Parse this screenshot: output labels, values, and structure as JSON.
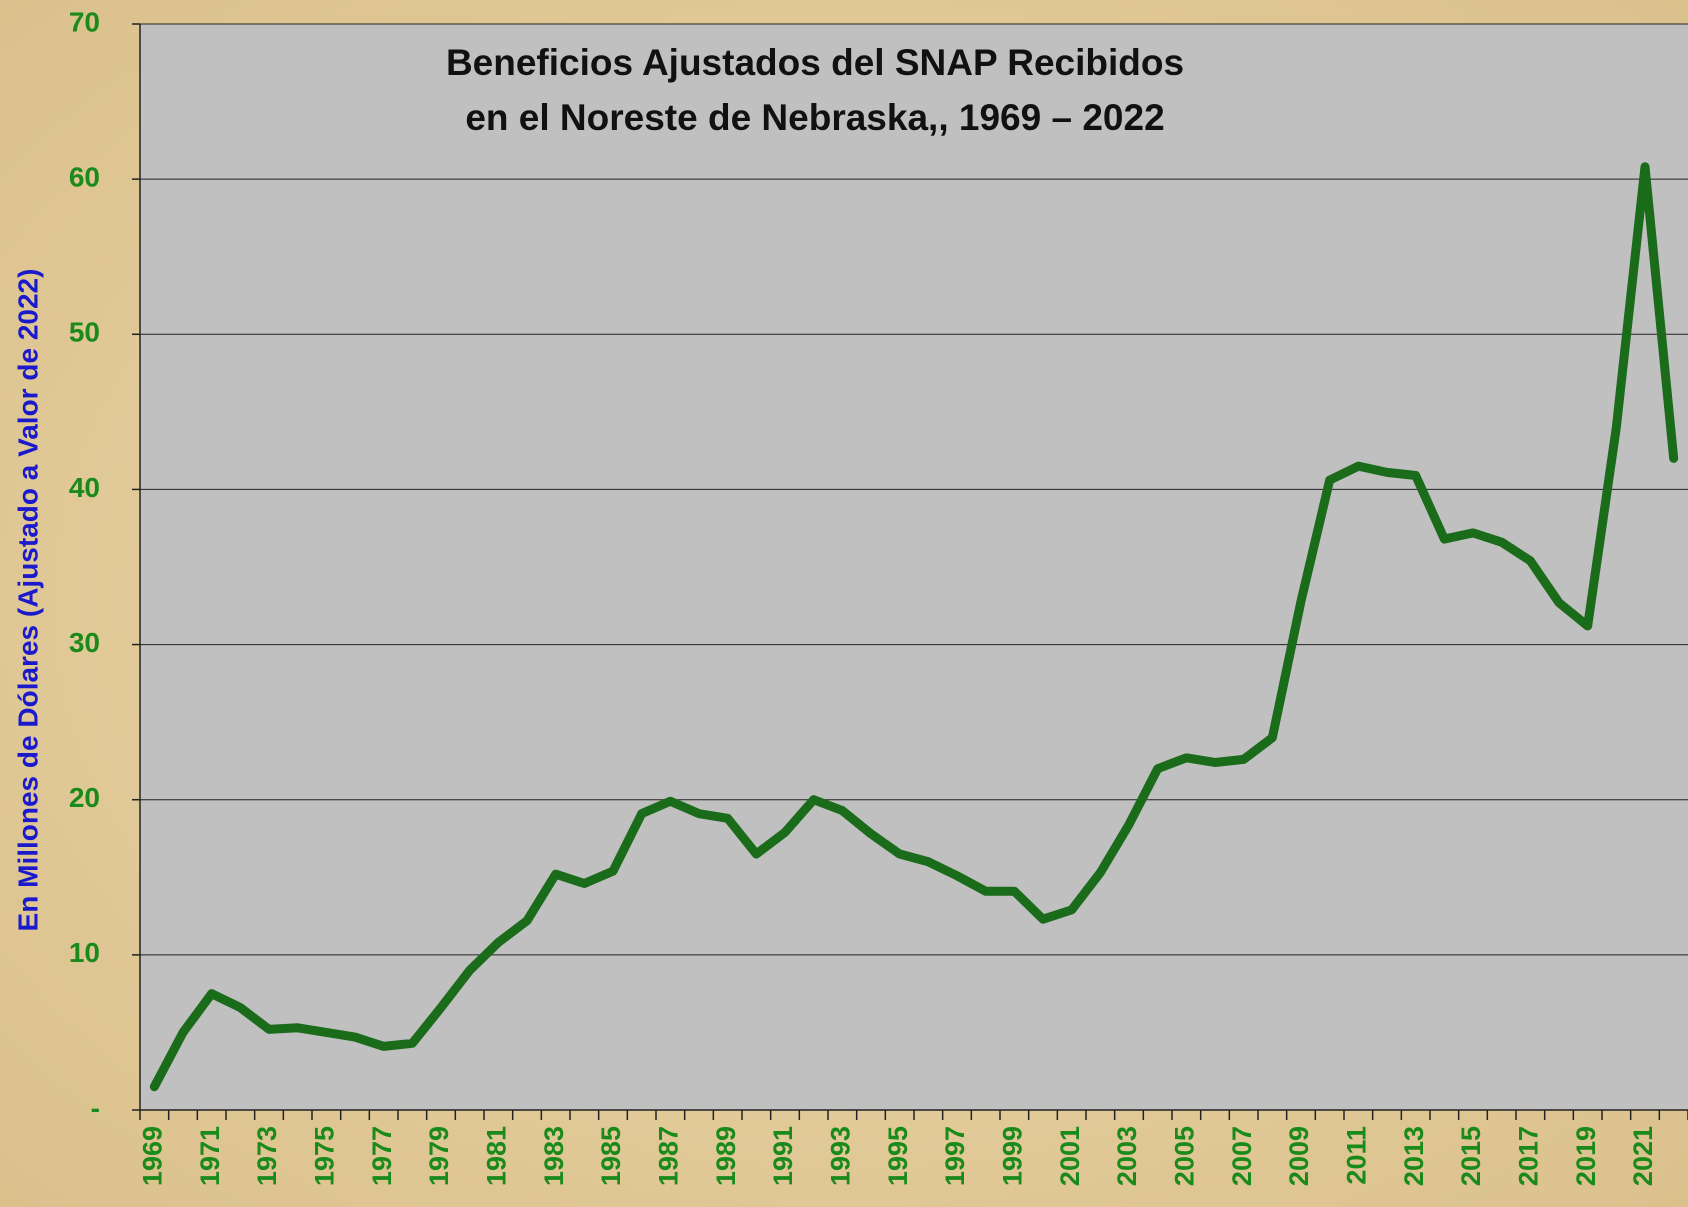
{
  "chart_data": {
    "type": "line",
    "title": [
      "Beneficios Ajustados del SNAP Recibidos",
      "en el Noreste de Nebraska,, 1969 – 2022"
    ],
    "y_label": "En Millones de Dólares (Ajustado a Valor de 2022)",
    "categories": [
      "1969",
      null,
      "1971",
      null,
      "1973",
      null,
      "1975",
      null,
      "1977",
      null,
      "1979",
      null,
      "1981",
      null,
      "1983",
      null,
      "1985",
      null,
      "1987",
      null,
      "1989",
      null,
      "1991",
      null,
      "1993",
      null,
      "1995",
      null,
      "1997",
      null,
      "1999",
      null,
      "2001",
      null,
      "2003",
      null,
      "2005",
      null,
      "2007",
      null,
      "2009",
      null,
      "2011",
      null,
      "2013",
      null,
      "2015",
      null,
      "2017",
      null,
      "2019",
      null,
      "2021",
      null
    ],
    "series": [
      {
        "name": "SNAP",
        "color": "#1a6b1a",
        "values": [
          1.5,
          5.0,
          7.5,
          6.6,
          5.2,
          5.3,
          5.0,
          4.7,
          4.1,
          4.3,
          6.6,
          9.0,
          10.8,
          12.2,
          15.2,
          14.6,
          15.4,
          19.1,
          19.9,
          19.1,
          18.8,
          16.5,
          17.9,
          20.0,
          19.3,
          17.8,
          16.5,
          16.0,
          15.1,
          14.1,
          14.1,
          12.3,
          12.9,
          15.3,
          18.4,
          22.0,
          22.7,
          22.4,
          22.6,
          24.0,
          32.8,
          40.6,
          41.5,
          41.1,
          40.9,
          36.8,
          37.2,
          36.6,
          35.4,
          32.7,
          31.2,
          44.0,
          60.8,
          42.0
        ]
      }
    ],
    "ylim": [
      0,
      70
    ],
    "yticks": [
      {
        "value": 0,
        "label": "-"
      },
      10,
      20,
      30,
      40,
      50,
      60,
      70
    ],
    "grid": true
  }
}
